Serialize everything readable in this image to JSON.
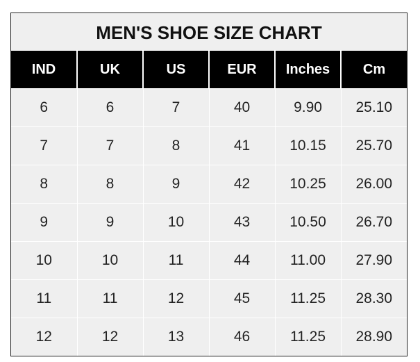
{
  "chart_data": {
    "type": "table",
    "title": "MEN'S SHOE SIZE CHART",
    "columns": [
      "IND",
      "UK",
      "US",
      "EUR",
      "Inches",
      "Cm"
    ],
    "rows": [
      [
        "6",
        "6",
        "7",
        "40",
        "9.90",
        "25.10"
      ],
      [
        "7",
        "7",
        "8",
        "41",
        "10.15",
        "25.70"
      ],
      [
        "8",
        "8",
        "9",
        "42",
        "10.25",
        "26.00"
      ],
      [
        "9",
        "9",
        "10",
        "43",
        "10.50",
        "26.70"
      ],
      [
        "10",
        "10",
        "11",
        "44",
        "11.00",
        "27.90"
      ],
      [
        "11",
        "11",
        "12",
        "45",
        "11.25",
        "28.30"
      ],
      [
        "12",
        "12",
        "13",
        "46",
        "11.25",
        "28.90"
      ]
    ]
  },
  "colors": {
    "header_bg": "#000000",
    "cell_bg": "#efefef",
    "header_text": "#ffffff"
  }
}
